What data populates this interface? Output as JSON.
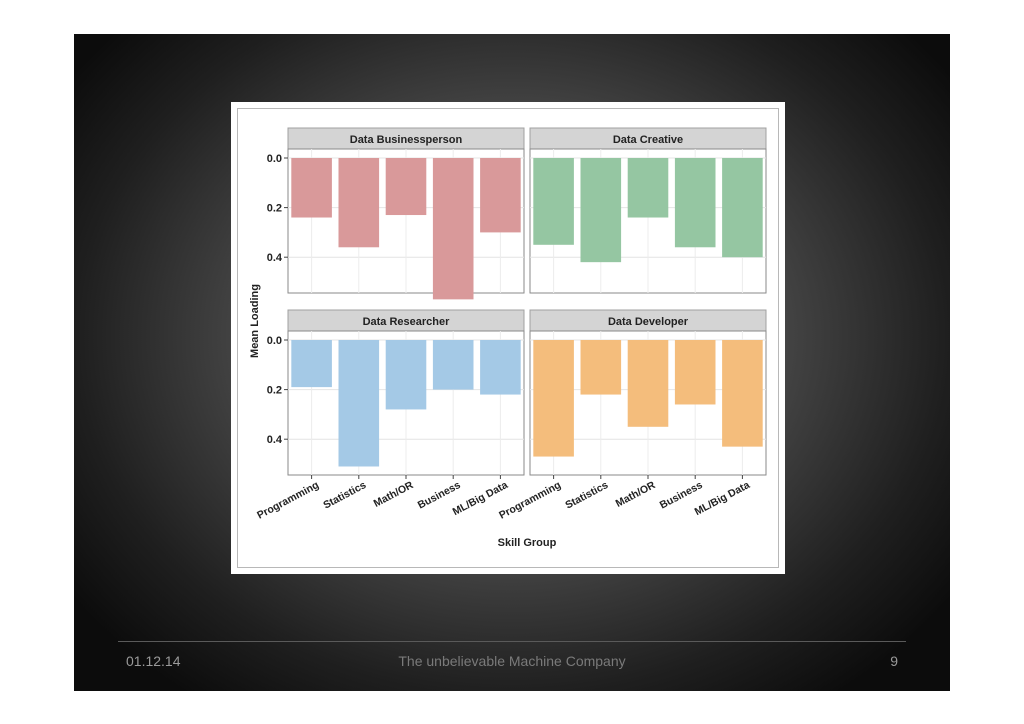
{
  "footer": {
    "date": "01.12.14",
    "company": "The unbelievable Machine Company",
    "page": "9"
  },
  "chart_data": {
    "type": "bar",
    "layout": "facet-grid-2x2",
    "categories": [
      "Programming",
      "Statistics",
      "Math/OR",
      "Business",
      "ML/Big Data"
    ],
    "xlabel": "Skill Group",
    "ylabel": "Mean Loading",
    "ylim": [
      0,
      0.6
    ],
    "y_reversed": true,
    "yticks": [
      "0.0",
      "0.2",
      "0.4"
    ],
    "grid": true,
    "panels": [
      {
        "title": "Data Businessperson",
        "color": "#d9999a",
        "values": [
          0.24,
          0.36,
          0.23,
          0.57,
          0.3
        ]
      },
      {
        "title": "Data Creative",
        "color": "#95c6a2",
        "values": [
          0.35,
          0.42,
          0.24,
          0.36,
          0.4
        ]
      },
      {
        "title": "Data Researcher",
        "color": "#a4c9e6",
        "values": [
          0.19,
          0.51,
          0.28,
          0.2,
          0.22
        ]
      },
      {
        "title": "Data Developer",
        "color": "#f4bd7c",
        "values": [
          0.47,
          0.22,
          0.35,
          0.26,
          0.43
        ]
      }
    ]
  }
}
